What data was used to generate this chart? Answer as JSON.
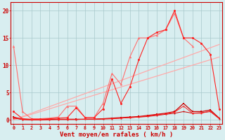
{
  "x": [
    0,
    1,
    2,
    3,
    4,
    5,
    6,
    7,
    8,
    9,
    10,
    11,
    12,
    13,
    14,
    15,
    16,
    17,
    18,
    19,
    20,
    21,
    22,
    23
  ],
  "line_diag1": [
    0.0,
    0.6,
    1.2,
    1.8,
    2.4,
    3.0,
    3.6,
    4.2,
    4.8,
    5.4,
    6.0,
    6.6,
    7.2,
    7.8,
    8.4,
    9.0,
    9.6,
    10.2,
    10.8,
    11.4,
    12.0,
    12.6,
    13.2,
    13.8
  ],
  "line_diag2": [
    0.0,
    0.5,
    1.0,
    1.5,
    2.0,
    2.5,
    3.0,
    3.5,
    4.0,
    4.5,
    5.0,
    5.5,
    6.0,
    6.5,
    7.0,
    7.5,
    8.0,
    8.5,
    9.0,
    9.5,
    10.0,
    10.5,
    11.0,
    11.5
  ],
  "line_tri": [
    13.5,
    1.5,
    0.2,
    0.2,
    0.3,
    0.5,
    2.5,
    2.5,
    0.4,
    0.4,
    3.0,
    8.5,
    6.5,
    11.5,
    15.0,
    15.0,
    15.5,
    16.5,
    19.5,
    15.0,
    13.5,
    null,
    null,
    null
  ],
  "line_circ": [
    1.5,
    0.2,
    0.1,
    0.1,
    0.2,
    0.3,
    0.4,
    2.2,
    0.4,
    0.4,
    2.0,
    7.5,
    3.0,
    6.0,
    11.0,
    15.0,
    16.0,
    16.5,
    20.0,
    15.0,
    15.0,
    14.0,
    12.0,
    2.0
  ],
  "line_bot1": [
    0.5,
    0.1,
    0.0,
    0.0,
    0.1,
    0.1,
    0.1,
    0.1,
    0.1,
    0.1,
    0.2,
    0.3,
    0.4,
    0.5,
    0.6,
    0.8,
    1.0,
    1.2,
    1.5,
    3.0,
    1.5,
    1.5,
    1.8,
    0.3
  ],
  "line_bot2": [
    0.3,
    0.05,
    0.0,
    0.0,
    0.05,
    0.05,
    0.05,
    0.05,
    0.1,
    0.1,
    0.15,
    0.2,
    0.3,
    0.4,
    0.5,
    0.6,
    0.8,
    1.0,
    1.2,
    1.5,
    1.2,
    1.3,
    1.5,
    0.2
  ],
  "line_bot3": [
    0.4,
    0.05,
    0.0,
    0.0,
    0.0,
    0.05,
    0.05,
    0.05,
    0.1,
    0.1,
    0.15,
    0.2,
    0.3,
    0.4,
    0.5,
    0.7,
    0.9,
    1.1,
    1.4,
    2.5,
    1.2,
    1.2,
    1.6,
    0.2
  ],
  "bg_color": "#d8eef0",
  "grid_color": "#a8c8cc",
  "color_light_pink": "#ffaaaa",
  "color_med_pink": "#ff7070",
  "color_dark_red": "#cc0000",
  "color_bright_red": "#ff2020",
  "xlabel": "Vent moyen/en rafales ( km/h )",
  "ylabel_ticks": [
    0,
    5,
    10,
    15,
    20
  ],
  "xlim": [
    -0.3,
    23.3
  ],
  "ylim": [
    -0.8,
    21.5
  ]
}
